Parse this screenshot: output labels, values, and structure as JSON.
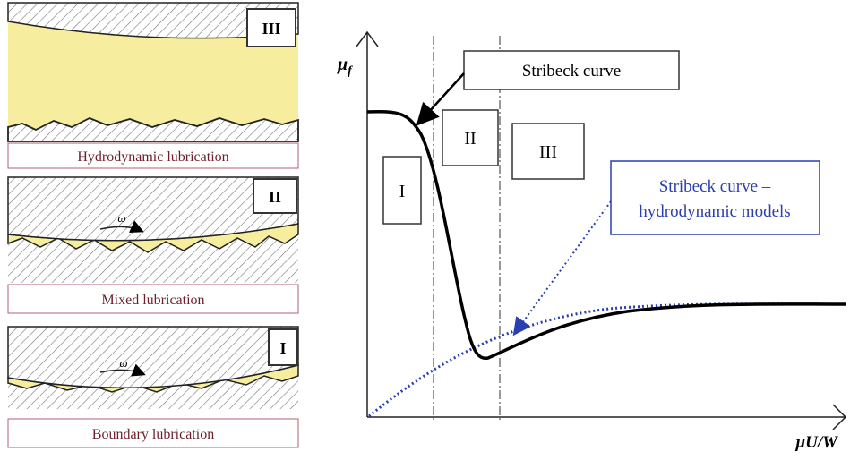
{
  "panels": [
    {
      "label": "III",
      "caption": "Hydrodynamic lubrication"
    },
    {
      "label": "II",
      "caption": "Mixed lubrication",
      "motion": "ω"
    },
    {
      "label": "I",
      "caption": "Boundary lubrication",
      "motion": "ω"
    }
  ],
  "graph": {
    "y_axis_label": {
      "symbol": "μ",
      "subscript": "f"
    },
    "x_axis_label": "μU/W",
    "callout": "Stribeck curve",
    "regions": [
      "I",
      "II",
      "III"
    ],
    "model_callout": [
      "Stribeck curve –",
      "hydrodynamic models"
    ]
  }
}
